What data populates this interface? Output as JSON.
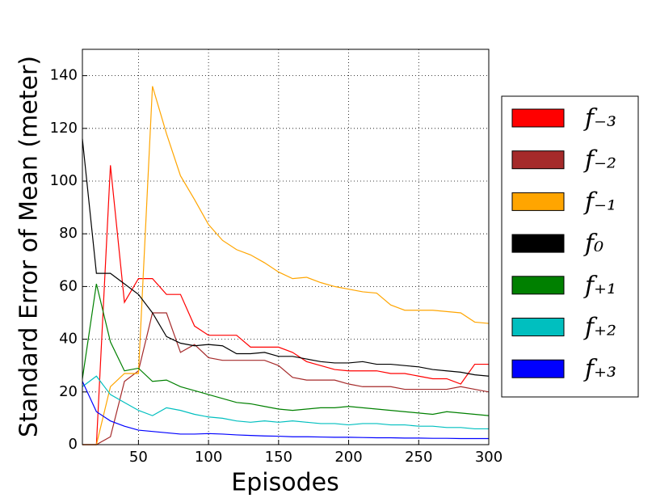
{
  "chart_data": {
    "type": "line",
    "x_label": "Episodes",
    "y_label": "Standard Error of Mean (meter)",
    "x": [
      10,
      20,
      30,
      40,
      50,
      60,
      70,
      80,
      90,
      100,
      110,
      120,
      130,
      140,
      150,
      160,
      170,
      180,
      190,
      200,
      210,
      220,
      230,
      240,
      250,
      260,
      270,
      280,
      290,
      300
    ],
    "xlim": [
      10,
      300
    ],
    "ylim": [
      0,
      150
    ],
    "xticks": [
      50,
      100,
      150,
      200,
      250,
      300
    ],
    "yticks": [
      0,
      20,
      40,
      60,
      80,
      100,
      120,
      140
    ],
    "grid": true,
    "legend": "outside right",
    "series": [
      {
        "name": "f₋₃",
        "color": "#ff0000",
        "values": [
          0,
          0,
          106,
          54,
          63,
          63,
          57,
          57,
          45,
          41.5,
          41.5,
          41.5,
          37,
          37,
          37,
          35,
          31.5,
          30,
          28.5,
          28,
          28,
          28,
          27,
          27,
          26,
          25,
          25,
          23,
          30.5,
          30.5
        ]
      },
      {
        "name": "f₋₂",
        "color": "#a52a2a",
        "values": [
          0,
          0,
          3,
          24,
          28,
          50,
          50,
          35,
          38,
          33,
          32,
          32,
          32,
          32,
          30,
          25.5,
          24.5,
          24.5,
          24.5,
          23,
          22,
          22,
          22,
          21,
          21,
          21,
          21,
          22,
          21,
          20
        ]
      },
      {
        "name": "f₋₁",
        "color": "#ffa500",
        "values": [
          0,
          0,
          22,
          27,
          27,
          136,
          118,
          102,
          93,
          83.5,
          77.5,
          74,
          72,
          69,
          65.5,
          63,
          63.5,
          61.5,
          60,
          59,
          58,
          57.5,
          53,
          51,
          51,
          51,
          50.5,
          50,
          46.5,
          46
        ]
      },
      {
        "name": "f₀",
        "color": "#000000",
        "values": [
          116,
          65,
          65,
          61,
          57,
          50,
          41,
          38.5,
          37.5,
          38,
          37.5,
          34.5,
          34.5,
          35,
          33.5,
          33.5,
          32.5,
          31.5,
          31,
          31,
          31.5,
          30.5,
          30.5,
          30,
          29.5,
          28.5,
          28,
          27.5,
          26.5,
          26
        ]
      },
      {
        "name": "f₊₁",
        "color": "#008000",
        "values": [
          25,
          61,
          39,
          28,
          29,
          24,
          24.5,
          22,
          20.5,
          19,
          17.5,
          16,
          15.5,
          14.5,
          13.5,
          13,
          13.5,
          14,
          14,
          14.5,
          14,
          13.5,
          13,
          12.5,
          12,
          11.5,
          12.5,
          12,
          11.5,
          11
        ]
      },
      {
        "name": "f₊₂",
        "color": "#00bfbf",
        "values": [
          22,
          26,
          19,
          16,
          13,
          11,
          14,
          13,
          11.5,
          10.5,
          10,
          9,
          8.5,
          9,
          8.5,
          9,
          8.5,
          8,
          8,
          7.5,
          8,
          8,
          7.5,
          7.5,
          7,
          7,
          6.5,
          6.5,
          6,
          6
        ]
      },
      {
        "name": "f₊₃",
        "color": "#0000ff",
        "values": [
          24,
          12.5,
          9,
          7,
          5.5,
          5,
          4.5,
          4,
          4,
          4.2,
          4,
          3.7,
          3.5,
          3.3,
          3.2,
          3,
          3,
          2.9,
          2.8,
          2.8,
          2.7,
          2.6,
          2.6,
          2.5,
          2.5,
          2.4,
          2.4,
          2.3,
          2.3,
          2.3
        ]
      }
    ]
  }
}
